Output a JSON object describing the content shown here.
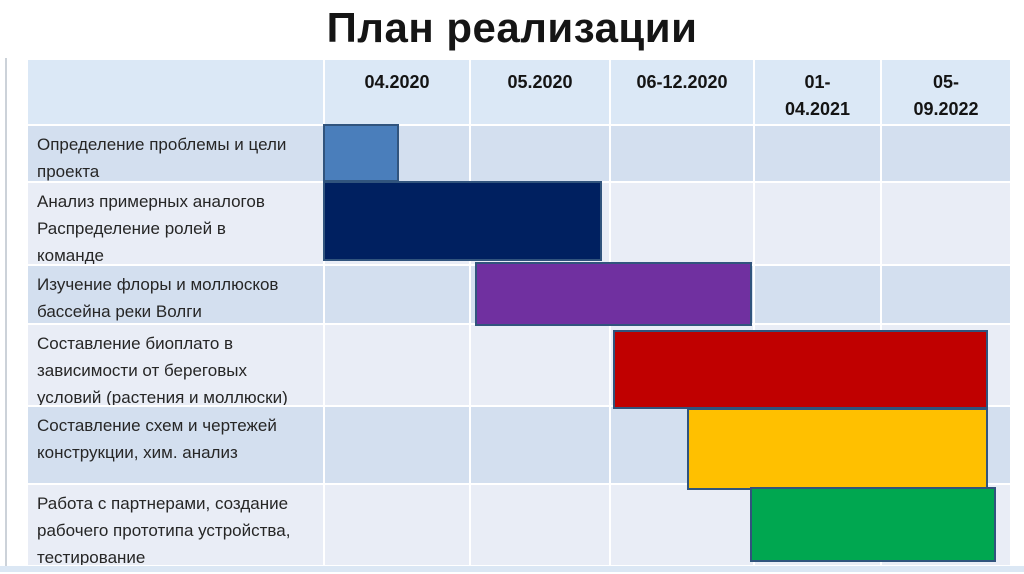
{
  "title": "План реализации",
  "table": {
    "column_headers": [
      "04.2020",
      "05.2020",
      "06-12.2020",
      "01-\n04.2021",
      "05-\n09.2022"
    ],
    "row_labels": [
      "Определение проблемы и цели\nпроекта",
      "Анализ примерных аналогов\nРаспределение ролей в\nкоманде",
      "Изучение флоры и моллюсков\nбассейна реки Волги",
      "Составление биоплато в\nзависимости от береговых\nусловий (растения и моллюски)",
      "Составление схем и чертежей\nконструкции, хим. анализ",
      "Работа с партнерами, создание\nрабочего прототипа устройства,\nтестирование"
    ]
  },
  "colors": {
    "header_bg": "#dbe8f6",
    "row_dark": "#d3dfef",
    "row_light": "#e9edf6",
    "grid_line": "#ffffff",
    "bar_border": "#31547d",
    "title_color": "#151515"
  },
  "chart_data": {
    "type": "bar",
    "subtype": "gantt",
    "title": "План реализации",
    "x_categories": [
      "04.2020",
      "05.2020",
      "06-12.2020",
      "01-04.2021",
      "05-09.2022"
    ],
    "legend": "none",
    "grid": true,
    "tasks": [
      {
        "name": "Определение проблемы и цели проекта",
        "row": 0,
        "start_col": 0,
        "end_col": 0.52,
        "period": "04.2020 (начало)",
        "color": "#4a7ebb"
      },
      {
        "name": "Анализ примерных аналогов Распределение ролей в команде",
        "row": 1,
        "start_col": 0,
        "end_col": 1.95,
        "period": "04.2020 – 05.2020",
        "color": "#002060"
      },
      {
        "name": "Изучение флоры и моллюсков бассейна реки Волги",
        "row": 2,
        "start_col": 1.04,
        "end_col": 2.99,
        "period": "05.2020 – 06-12.2020",
        "color": "#7030a0"
      },
      {
        "name": "Составление биоплато в зависимости от береговых условий (растения и моллюски)",
        "row": 3,
        "start_col": 2.03,
        "end_col": 4.83,
        "period": "06-12.2020 – 05-09.2022",
        "color": "#c00000"
      },
      {
        "name": "Составление схем и чертежей конструкции, хим. анализ",
        "row": 4,
        "start_col": 2.54,
        "end_col": 4.83,
        "period": "06-12.2020 – 05-09.2022",
        "color": "#ffc000"
      },
      {
        "name": "Работа с партнерами, создание рабочего прототипа устройства, тестирование",
        "row": 5,
        "start_col": 2.98,
        "end_col": 4.89,
        "period": "01-04.2021 – 05-09.2022",
        "color": "#00a750"
      }
    ]
  }
}
